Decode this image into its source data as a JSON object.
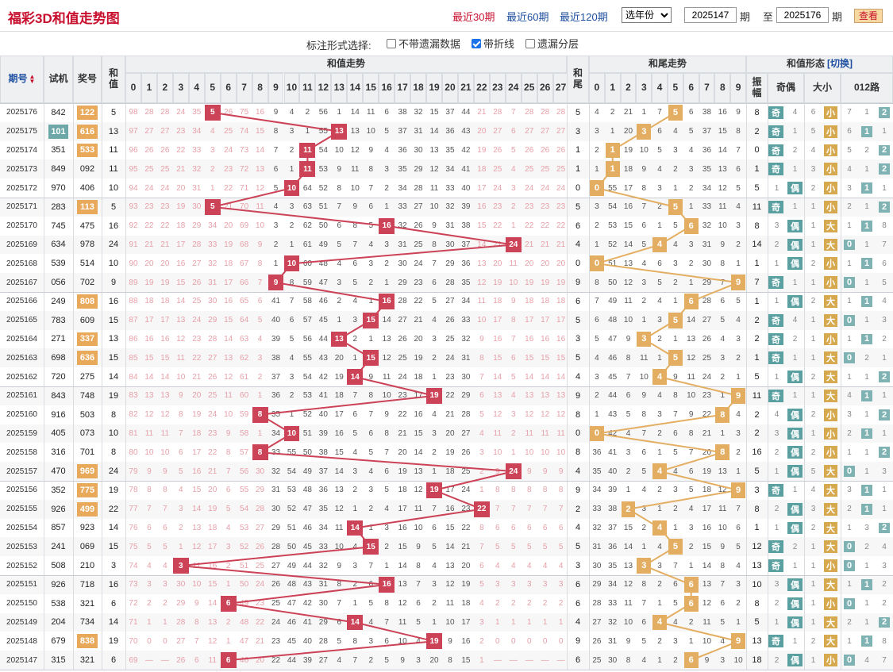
{
  "header": {
    "title": "福彩3D和值走势图",
    "links": [
      "最近30期",
      "最近60期",
      "最近120期"
    ],
    "active_link": 0,
    "year_select": "选年份",
    "from_value": "2025147",
    "from_suffix": "期",
    "to_prefix": "至",
    "to_value": "2025176",
    "to_suffix": "期",
    "view_button": "查看"
  },
  "options": {
    "label": "标注形式选择:",
    "items": [
      {
        "label": "不带遗漏数据",
        "checked": false
      },
      {
        "label": "带折线",
        "checked": true
      },
      {
        "label": "遗漏分层",
        "checked": false
      }
    ]
  },
  "table_headers": {
    "issue": "期号",
    "test": "试机",
    "prize": "奖号",
    "sum": "和值",
    "sum_trend": "和值走势",
    "tail": "和尾",
    "tail_trend": "和尾走势",
    "form": "和值形态",
    "switch": "[切换]",
    "amp": "振幅",
    "parity": "奇偶",
    "size": "大小",
    "route": "012路",
    "sort_icon": "sort-arrows-icon"
  },
  "sum_cols": [
    "0",
    "1",
    "2",
    "3",
    "4",
    "5",
    "6",
    "7",
    "8",
    "9",
    "10",
    "11",
    "12",
    "13",
    "14",
    "15",
    "16",
    "17",
    "18",
    "19",
    "20",
    "21",
    "22",
    "23",
    "24",
    "25",
    "26",
    "27"
  ],
  "tail_cols": [
    "0",
    "1",
    "2",
    "3",
    "4",
    "5",
    "6",
    "7",
    "8",
    "9"
  ],
  "tag_labels": {
    "odd": "奇",
    "even": "偶",
    "big": "大",
    "small": "小"
  },
  "rows": [
    {
      "id": "2025176",
      "sj": "842",
      "kj": "122",
      "sj_hl": false,
      "kj_hl": true,
      "sum": 5,
      "tail": 5,
      "amp": 8,
      "route_hit": 2,
      "pm": [
        "4",
        "6"
      ],
      "rm": [
        "7",
        "1"
      ]
    },
    {
      "id": "2025175",
      "sj": "101",
      "kj": "616",
      "sj_hl": true,
      "kj_hl": true,
      "sum": 13,
      "tail": 3,
      "amp": 2,
      "route_hit": 1,
      "pm": [
        "1",
        "5"
      ],
      "rm": [
        "6",
        "1"
      ]
    },
    {
      "id": "2025174",
      "sj": "351",
      "kj": "533",
      "sj_hl": false,
      "kj_hl": true,
      "sum": 11,
      "tail": 1,
      "amp": 0,
      "route_hit": 2,
      "pm": [
        "2",
        "4"
      ],
      "rm": [
        "5",
        "2"
      ]
    },
    {
      "id": "2025173",
      "sj": "849",
      "kj": "092",
      "sj_hl": false,
      "kj_hl": false,
      "sum": 11,
      "tail": 1,
      "amp": 1,
      "route_hit": 2,
      "pm": [
        "1",
        "3"
      ],
      "rm": [
        "4",
        "1"
      ]
    },
    {
      "id": "2025172",
      "sj": "970",
      "kj": "406",
      "sj_hl": false,
      "kj_hl": false,
      "sum": 10,
      "tail": 0,
      "amp": 5,
      "route_hit": 1,
      "pm": [
        "1",
        "2"
      ],
      "rm": [
        "3",
        "1"
      ]
    },
    {
      "id": "2025171",
      "sj": "283",
      "kj": "113",
      "sj_hl": false,
      "kj_hl": true,
      "sum": 5,
      "tail": 5,
      "amp": 11,
      "route_hit": 2,
      "pm": [
        "1",
        "1"
      ],
      "rm": [
        "2",
        "1"
      ]
    },
    {
      "id": "2025170",
      "sj": "745",
      "kj": "475",
      "sj_hl": false,
      "kj_hl": false,
      "sum": 16,
      "tail": 6,
      "amp": 8,
      "route_hit": 1,
      "pm": [
        "3",
        "1"
      ],
      "rm": [
        "1",
        "8"
      ]
    },
    {
      "id": "2025169",
      "sj": "634",
      "kj": "978",
      "sj_hl": false,
      "kj_hl": false,
      "sum": 24,
      "tail": 4,
      "amp": 14,
      "route_hit": 0,
      "pm": [
        "2",
        "1"
      ],
      "rm": [
        "1",
        "7"
      ]
    },
    {
      "id": "2025168",
      "sj": "539",
      "kj": "514",
      "sj_hl": false,
      "kj_hl": false,
      "sum": 10,
      "tail": 0,
      "amp": 1,
      "route_hit": 1,
      "pm": [
        "1",
        "2"
      ],
      "rm": [
        "1",
        "6"
      ]
    },
    {
      "id": "2025167",
      "sj": "056",
      "kj": "702",
      "sj_hl": false,
      "kj_hl": false,
      "sum": 9,
      "tail": 9,
      "amp": 7,
      "route_hit": 0,
      "pm": [
        "1",
        "1"
      ],
      "rm": [
        "1",
        "5"
      ]
    },
    {
      "id": "2025166",
      "sj": "249",
      "kj": "808",
      "sj_hl": false,
      "kj_hl": true,
      "sum": 16,
      "tail": 6,
      "amp": 1,
      "route_hit": 1,
      "pm": [
        "1",
        "2"
      ],
      "rm": [
        "1",
        "4"
      ]
    },
    {
      "id": "2025165",
      "sj": "783",
      "kj": "609",
      "sj_hl": false,
      "kj_hl": false,
      "sum": 15,
      "tail": 5,
      "amp": 2,
      "route_hit": 0,
      "pm": [
        "4",
        "1"
      ],
      "rm": [
        "1",
        "3"
      ]
    },
    {
      "id": "2025164",
      "sj": "271",
      "kj": "337",
      "sj_hl": false,
      "kj_hl": true,
      "sum": 13,
      "tail": 3,
      "amp": 2,
      "route_hit": 1,
      "pm": [
        "2",
        "1"
      ],
      "rm": [
        "1",
        "2"
      ]
    },
    {
      "id": "2025163",
      "sj": "698",
      "kj": "636",
      "sj_hl": false,
      "kj_hl": true,
      "sum": 15,
      "tail": 5,
      "amp": 1,
      "route_hit": 0,
      "pm": [
        "1",
        "1"
      ],
      "rm": [
        "2",
        "1"
      ]
    },
    {
      "id": "2025162",
      "sj": "720",
      "kj": "275",
      "sj_hl": false,
      "kj_hl": false,
      "sum": 14,
      "tail": 4,
      "amp": 5,
      "route_hit": 2,
      "pm": [
        "1",
        "2"
      ],
      "rm": [
        "1",
        "1"
      ]
    },
    {
      "id": "2025161",
      "sj": "843",
      "kj": "748",
      "sj_hl": false,
      "kj_hl": false,
      "sum": 19,
      "tail": 9,
      "amp": 11,
      "route_hit": 1,
      "pm": [
        "1",
        "1"
      ],
      "rm": [
        "4",
        "1"
      ]
    },
    {
      "id": "2025160",
      "sj": "916",
      "kj": "503",
      "sj_hl": false,
      "kj_hl": false,
      "sum": 8,
      "tail": 8,
      "amp": 2,
      "route_hit": 2,
      "pm": [
        "4",
        "2"
      ],
      "rm": [
        "3",
        "1"
      ]
    },
    {
      "id": "2025159",
      "sj": "405",
      "kj": "073",
      "sj_hl": false,
      "kj_hl": false,
      "sum": 10,
      "tail": 0,
      "amp": 2,
      "route_hit": 1,
      "pm": [
        "3",
        "1"
      ],
      "rm": [
        "2",
        "1"
      ]
    },
    {
      "id": "2025158",
      "sj": "316",
      "kj": "701",
      "sj_hl": false,
      "kj_hl": false,
      "sum": 8,
      "tail": 8,
      "amp": 16,
      "route_hit": 2,
      "pm": [
        "2",
        "2"
      ],
      "rm": [
        "1",
        "1"
      ]
    },
    {
      "id": "2025157",
      "sj": "470",
      "kj": "969",
      "sj_hl": false,
      "kj_hl": true,
      "sum": 24,
      "tail": 4,
      "amp": 5,
      "route_hit": 0,
      "pm": [
        "1",
        "5"
      ],
      "rm": [
        "1",
        "3"
      ]
    },
    {
      "id": "2025156",
      "sj": "352",
      "kj": "775",
      "sj_hl": false,
      "kj_hl": true,
      "sum": 19,
      "tail": 9,
      "amp": 3,
      "route_hit": 1,
      "pm": [
        "1",
        "4"
      ],
      "rm": [
        "3",
        "1"
      ]
    },
    {
      "id": "2025155",
      "sj": "926",
      "kj": "499",
      "sj_hl": false,
      "kj_hl": true,
      "sum": 22,
      "tail": 2,
      "amp": 8,
      "route_hit": 1,
      "pm": [
        "2",
        "3"
      ],
      "rm": [
        "2",
        "1"
      ]
    },
    {
      "id": "2025154",
      "sj": "857",
      "kj": "923",
      "sj_hl": false,
      "kj_hl": false,
      "sum": 14,
      "tail": 4,
      "amp": 1,
      "route_hit": 2,
      "pm": [
        "1",
        "2"
      ],
      "rm": [
        "1",
        "3"
      ]
    },
    {
      "id": "2025153",
      "sj": "241",
      "kj": "069",
      "sj_hl": false,
      "kj_hl": false,
      "sum": 15,
      "tail": 5,
      "amp": 12,
      "route_hit": 0,
      "pm": [
        "2",
        "1"
      ],
      "rm": [
        "2",
        "4"
      ]
    },
    {
      "id": "2025152",
      "sj": "508",
      "kj": "210",
      "sj_hl": false,
      "kj_hl": false,
      "sum": 3,
      "tail": 3,
      "amp": 13,
      "route_hit": 0,
      "pm": [
        "1",
        "1"
      ],
      "rm": [
        "1",
        "3"
      ]
    },
    {
      "id": "2025151",
      "sj": "926",
      "kj": "718",
      "sj_hl": false,
      "kj_hl": false,
      "sum": 16,
      "tail": 6,
      "amp": 10,
      "route_hit": 1,
      "pm": [
        "3",
        "1"
      ],
      "rm": [
        "1",
        "2"
      ]
    },
    {
      "id": "2025150",
      "sj": "538",
      "kj": "321",
      "sj_hl": false,
      "kj_hl": false,
      "sum": 6,
      "tail": 6,
      "amp": 8,
      "route_hit": 0,
      "pm": [
        "2",
        "1"
      ],
      "rm": [
        "1",
        "2"
      ]
    },
    {
      "id": "2025149",
      "sj": "204",
      "kj": "734",
      "sj_hl": false,
      "kj_hl": false,
      "sum": 14,
      "tail": 4,
      "amp": 5,
      "route_hit": 2,
      "pm": [
        "1",
        "1"
      ],
      "rm": [
        "2",
        "1"
      ]
    },
    {
      "id": "2025148",
      "sj": "679",
      "kj": "838",
      "sj_hl": false,
      "kj_hl": true,
      "sum": 19,
      "tail": 9,
      "amp": 13,
      "route_hit": 1,
      "pm": [
        "1",
        "2"
      ],
      "rm": [
        "1",
        "8"
      ]
    },
    {
      "id": "2025147",
      "sj": "315",
      "kj": "321",
      "sj_hl": false,
      "kj_hl": false,
      "sum": 6,
      "tail": 6,
      "amp": 18,
      "route_hit": 0,
      "pm": [
        "2",
        "1"
      ],
      "rm": [
        "4",
        "7"
      ]
    }
  ],
  "colors": {
    "sum_hit": "#cc4257",
    "tail_hit": "#e4ae62",
    "brand": "#c8102e",
    "link": "#1e4fa0"
  }
}
